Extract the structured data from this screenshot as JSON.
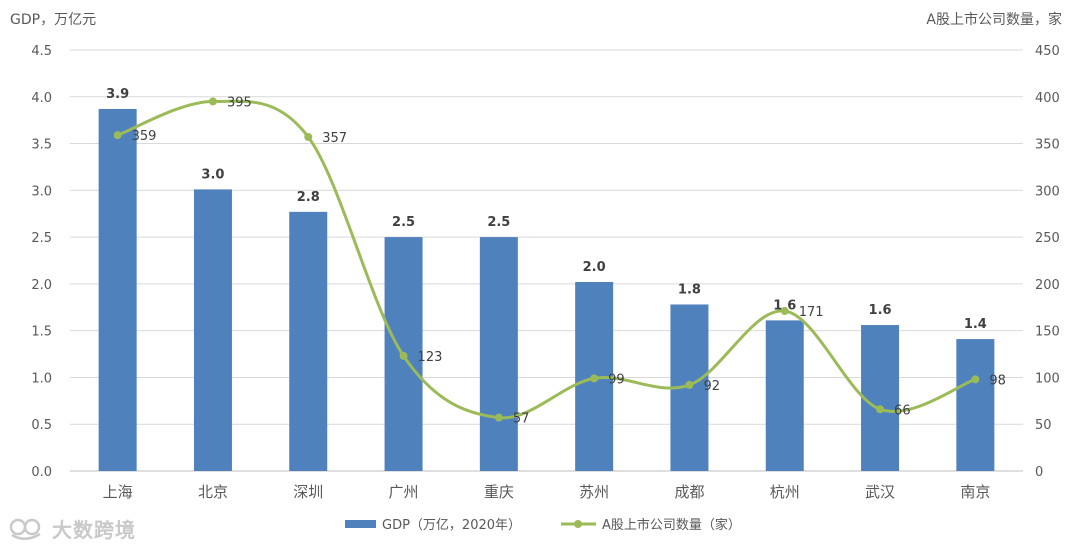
{
  "left_axis_unit": "GDP，万亿元",
  "right_axis_unit": "A股上市公司数量，家",
  "watermark": "大数跨境",
  "colors": {
    "bar": "#4f81bd",
    "line": "#9bbb59",
    "grid": "#d9d9d9",
    "axis_text": "#595959",
    "label_text": "#404040"
  },
  "chart_data": {
    "type": "bar",
    "categories": [
      "上海",
      "北京",
      "深圳",
      "广州",
      "重庆",
      "苏州",
      "成都",
      "杭州",
      "武汉",
      "南京"
    ],
    "series": [
      {
        "name": "GDP（万亿，2020年）",
        "type": "bar",
        "axis": "left",
        "values": [
          3.87,
          3.01,
          2.77,
          2.5,
          2.5,
          2.02,
          1.78,
          1.61,
          1.56,
          1.41
        ],
        "labels": [
          "3.9",
          "3.0",
          "2.8",
          "2.5",
          "2.5",
          "2.0",
          "1.8",
          "1.6",
          "1.6",
          "1.4"
        ]
      },
      {
        "name": "A股上市公司数量（家）",
        "type": "line",
        "axis": "right",
        "smooth": true,
        "marker": "circle",
        "values": [
          359,
          395,
          357,
          123,
          57,
          99,
          92,
          171,
          66,
          98
        ],
        "labels": [
          "359",
          "395",
          "357",
          "123",
          "57",
          "99",
          "92",
          "171",
          "66",
          "98"
        ]
      }
    ],
    "y_left": {
      "lim": [
        0,
        4.5
      ],
      "ticks": [
        "0.0",
        "0.5",
        "1.0",
        "1.5",
        "2.0",
        "2.5",
        "3.0",
        "3.5",
        "4.0",
        "4.5"
      ]
    },
    "y_right": {
      "lim": [
        0,
        450
      ],
      "ticks": [
        "0",
        "50",
        "100",
        "150",
        "200",
        "250",
        "300",
        "350",
        "400",
        "450"
      ]
    },
    "grid": true,
    "legend": "bottom"
  }
}
